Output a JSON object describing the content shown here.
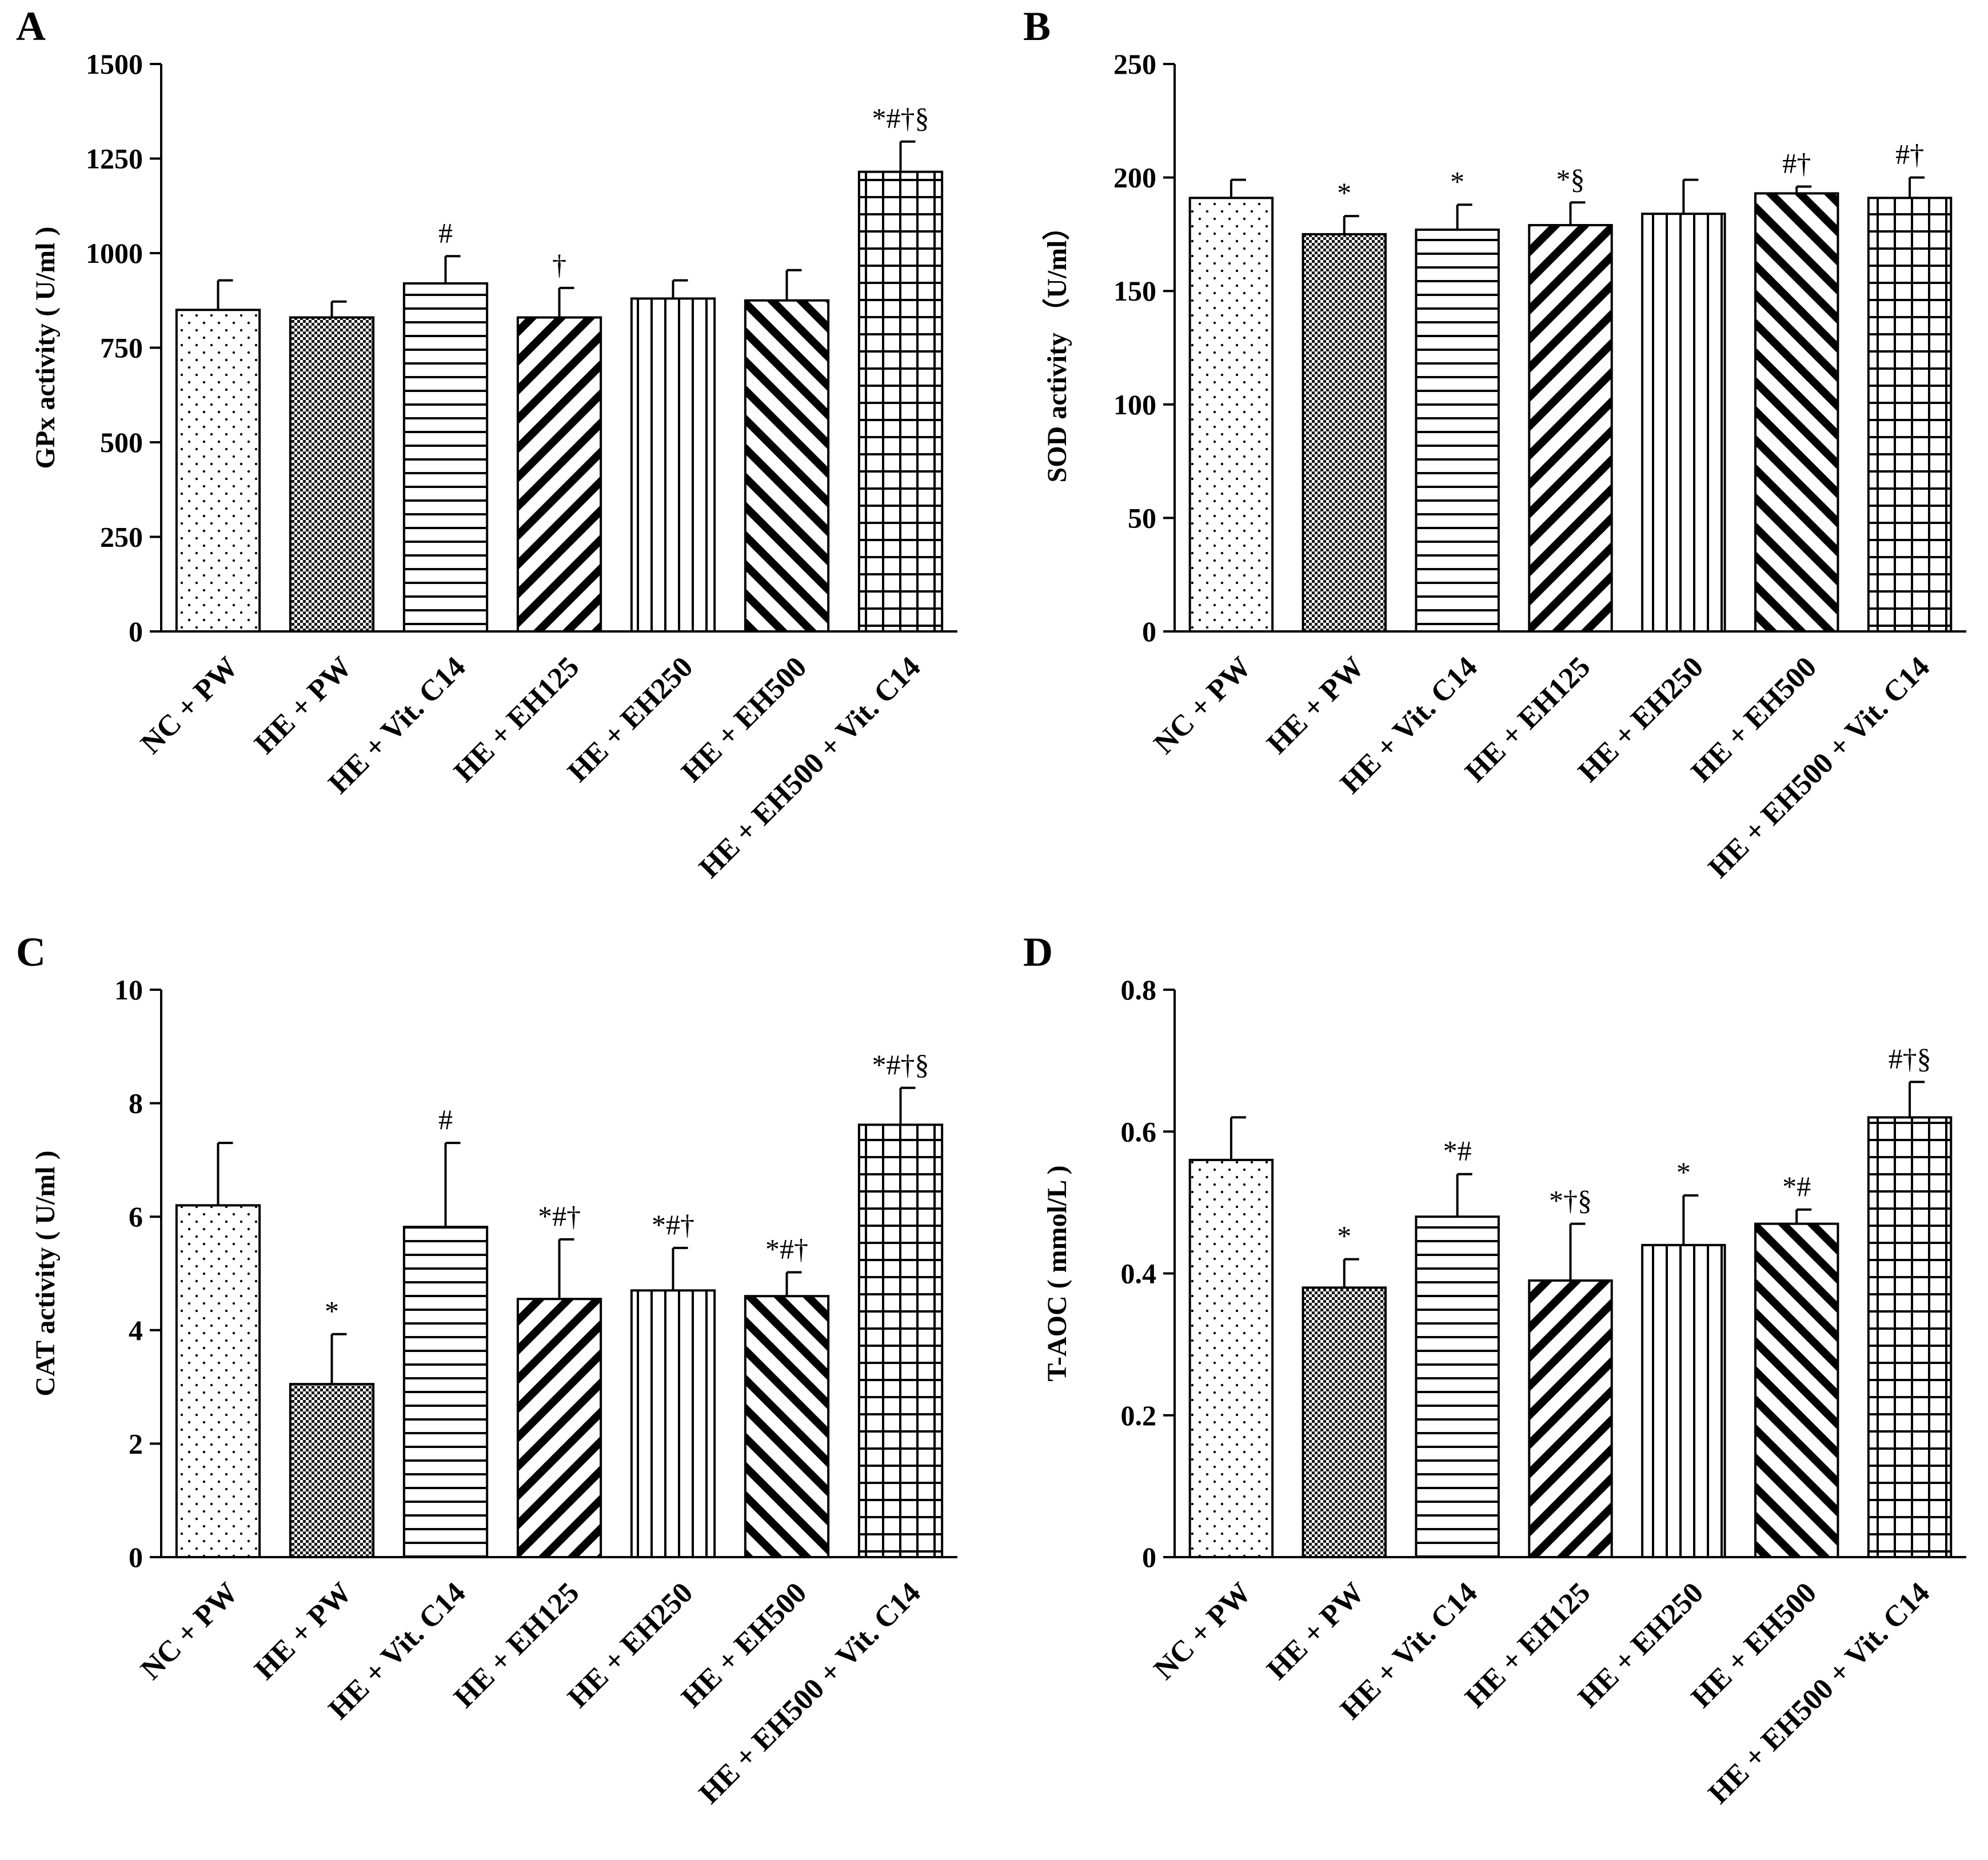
{
  "chart_data": [
    {
      "panel": "A",
      "type": "bar",
      "ylabel": "GPx activity ( U/ml )",
      "ylim": [
        0,
        1500
      ],
      "yticks": [
        0,
        250,
        500,
        750,
        1000,
        1250,
        1500
      ],
      "categories": [
        "NC + PW",
        "HE + PW",
        "HE + Vit. C14",
        "HE + EH125",
        "HE + EH250",
        "HE + EH500",
        "HE + EH500 + Vit. C14"
      ],
      "values": [
        850,
        830,
        920,
        830,
        880,
        875,
        1215
      ],
      "errors": [
        78,
        42,
        72,
        78,
        48,
        80,
        80
      ],
      "annotations": [
        "",
        "",
        "#",
        "†",
        "",
        "",
        "*#†§"
      ]
    },
    {
      "panel": "B",
      "type": "bar",
      "ylabel": "SOD activity （U/ml）",
      "ylim": [
        0,
        250
      ],
      "yticks": [
        0,
        50,
        100,
        150,
        200,
        250
      ],
      "categories": [
        "NC + PW",
        "HE + PW",
        "HE + Vit. C14",
        "HE + EH125",
        "HE + EH250",
        "HE + EH500",
        "HE + EH500 + Vit. C14"
      ],
      "values": [
        191,
        175,
        177,
        179,
        184,
        193,
        191
      ],
      "errors": [
        8,
        8,
        11,
        10,
        15,
        3,
        9
      ],
      "annotations": [
        "",
        "*",
        "*",
        "*§",
        "",
        "#†",
        "#†"
      ]
    },
    {
      "panel": "C",
      "type": "bar",
      "ylabel": "CAT activity ( U/ml )",
      "ylim": [
        0,
        10
      ],
      "yticks": [
        0,
        2,
        4,
        6,
        8,
        10
      ],
      "categories": [
        "NC + PW",
        "HE + PW",
        "HE + Vit. C14",
        "HE + EH125",
        "HE + EH250",
        "HE + EH500",
        "HE + EH500 + Vit. C14"
      ],
      "values": [
        6.2,
        3.05,
        5.82,
        4.55,
        4.7,
        4.6,
        7.62
      ],
      "errors": [
        1.1,
        0.88,
        1.48,
        1.05,
        0.75,
        0.42,
        0.65
      ],
      "annotations": [
        "",
        "*",
        "#",
        "*#†",
        "*#†",
        "*#†",
        "*#†§"
      ]
    },
    {
      "panel": "D",
      "type": "bar",
      "ylabel": "T-AOC ( mmol/L )",
      "ylim": [
        0,
        0.8
      ],
      "yticks": [
        0,
        0.2,
        0.4,
        0.6,
        0.8
      ],
      "categories": [
        "NC + PW",
        "HE + PW",
        "HE + Vit. C14",
        "HE + EH125",
        "HE + EH250",
        "HE + EH500",
        "HE + EH500 + Vit. C14"
      ],
      "values": [
        0.56,
        0.38,
        0.48,
        0.39,
        0.44,
        0.47,
        0.62
      ],
      "errors": [
        0.06,
        0.04,
        0.06,
        0.08,
        0.07,
        0.02,
        0.05
      ],
      "annotations": [
        "",
        "*",
        "*#",
        "*†§",
        "*",
        "*#",
        "#†§"
      ]
    }
  ],
  "patterns": [
    "dots",
    "crosshatch",
    "horizontal",
    "diag-back",
    "vertical",
    "diag-fwd",
    "grid"
  ]
}
